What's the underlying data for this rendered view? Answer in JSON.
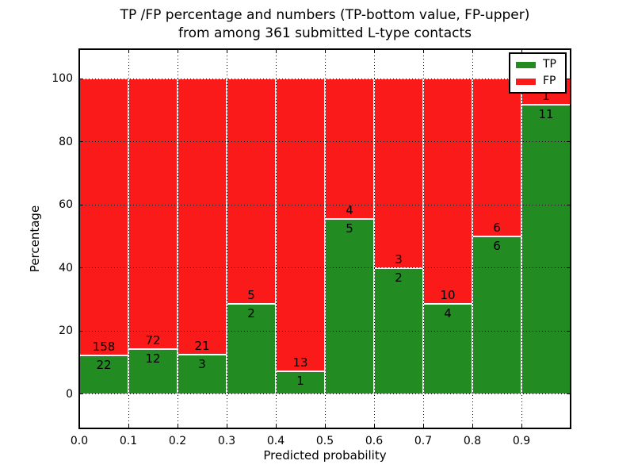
{
  "title": {
    "line1": "TP /FP percentage and numbers (TP-bottom value, FP-upper)",
    "line2": "from among 361 submitted L-type contacts"
  },
  "axes": {
    "xlabel": "Predicted probability",
    "ylabel": "Percentage"
  },
  "colors": {
    "tp_green": "#228b22",
    "fp_red": "#fa1a1a",
    "grid": "#000000",
    "bar_edge": "#ffffff"
  },
  "chart_data": {
    "type": "bar",
    "stacked": true,
    "normalized": "percent",
    "title": "TP /FP percentage and numbers (TP-bottom value, FP-upper)\nfrom among 361 submitted L-type contacts",
    "xlabel": "Predicted probability",
    "ylabel": "Percentage",
    "total_contacts": 361,
    "bin_edges": [
      0.0,
      0.1,
      0.2,
      0.3,
      0.4,
      0.5,
      0.6,
      0.7,
      0.8,
      0.9,
      1.0
    ],
    "x_tick_labels": [
      "0.0",
      "0.1",
      "0.2",
      "0.3",
      "0.4",
      "0.5",
      "0.6",
      "0.7",
      "0.8",
      "0.9"
    ],
    "y_tick_values": [
      0,
      20,
      40,
      60,
      80,
      100
    ],
    "y_tick_labels": [
      "0",
      "20",
      "40",
      "60",
      "80",
      "100"
    ],
    "xlim": [
      0.0,
      1.0
    ],
    "ylim": [
      -10.9,
      109.4
    ],
    "grid": "dotted",
    "legend_position": "upper-right",
    "series": [
      {
        "name": "TP",
        "color": "#228b22",
        "counts": [
          22,
          12,
          3,
          2,
          1,
          5,
          2,
          4,
          6,
          11
        ]
      },
      {
        "name": "FP",
        "color": "#fa1a1a",
        "counts": [
          158,
          72,
          21,
          5,
          13,
          4,
          3,
          10,
          6,
          1
        ]
      }
    ],
    "tp_percent_per_bin": [
      12.22,
      14.29,
      12.5,
      28.57,
      7.14,
      55.56,
      40.0,
      28.57,
      50.0,
      91.67
    ]
  }
}
